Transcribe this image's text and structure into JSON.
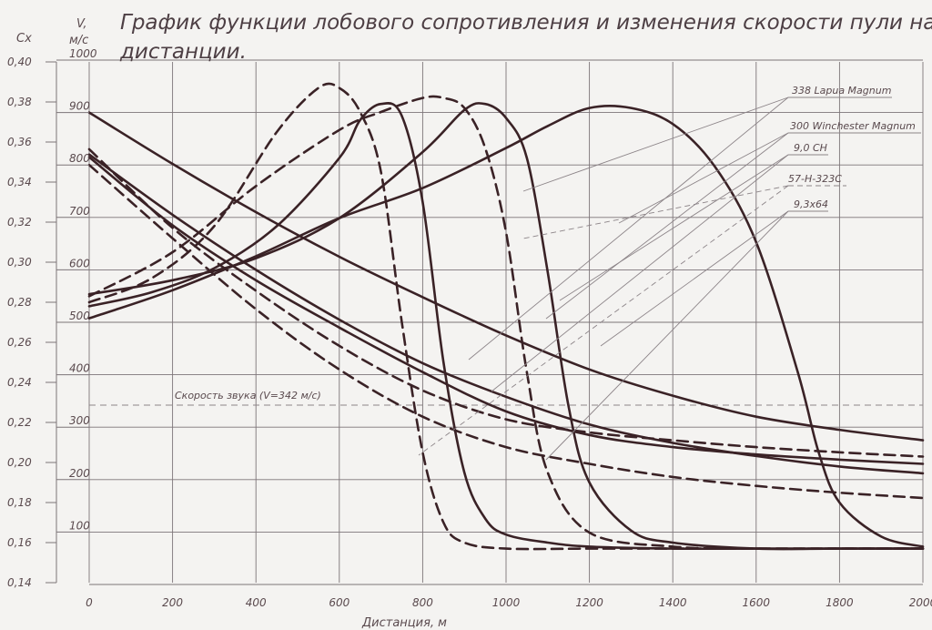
{
  "colors": {
    "paper": "#f4f3f1",
    "grid": "#7c7478",
    "curve": "#3a2226",
    "leader": "#8c8488",
    "text": "#5a4a4e"
  },
  "chart_data": {
    "type": "line",
    "title_line1": "График функции лобового сопротивления и изменения скорости пули на",
    "title_line2": "дистанции.",
    "xlabel": "Дистанция, м",
    "ylabel_cx": "Cx",
    "ylabel_v_top": "V,",
    "ylabel_v_unit": "м/с",
    "x_ticks": [
      "0",
      "200",
      "400",
      "600",
      "800",
      "1000",
      "1200",
      "1400",
      "1600",
      "1800",
      "2000"
    ],
    "cx_ticks": [
      "0,40",
      "0,38",
      "0,36",
      "0,34",
      "0,32",
      "0,30",
      "0,28",
      "0,26",
      "0,24",
      "0,22",
      "0,20",
      "0,18",
      "0,16",
      "0,14"
    ],
    "v_ticks": [
      "1000",
      "900",
      "800",
      "700",
      "600",
      "500",
      "400",
      "300",
      "200",
      "100"
    ],
    "xlim": [
      0,
      2000
    ],
    "vlim": [
      0,
      1000
    ],
    "cxlim": [
      0.14,
      0.4
    ],
    "grid": true,
    "sound_speed_label": "Скорость звука (V=342 м/с)",
    "sound_speed_value": 342,
    "legend": [
      {
        "name": "338 Lapua Magnum"
      },
      {
        "name": "300 Winchester Magnum"
      },
      {
        "name": "9,0 CH"
      },
      {
        "name": "57-H-323C"
      },
      {
        "name": "9,3x64"
      }
    ],
    "velocity_series": [
      {
        "style": "solid",
        "x": [
          0,
          200,
          400,
          600,
          800,
          1000,
          1200,
          1400,
          1600,
          1800,
          2000
        ],
        "values": [
          900,
          802,
          710,
          625,
          548,
          475,
          410,
          360,
          320,
          295,
          275
        ]
      },
      {
        "style": "solid",
        "x": [
          0,
          200,
          400,
          600,
          800,
          1000,
          1200,
          1400,
          1600,
          1800,
          2000
        ],
        "values": [
          820,
          705,
          600,
          505,
          422,
          358,
          305,
          270,
          245,
          225,
          212
        ]
      },
      {
        "style": "solid",
        "x": [
          0,
          200,
          400,
          600,
          800,
          1000,
          1200,
          1400,
          1600,
          1800,
          2000
        ],
        "values": [
          815,
          685,
          580,
          490,
          405,
          330,
          285,
          262,
          248,
          238,
          230
        ]
      },
      {
        "style": "dashed",
        "x": [
          0,
          200,
          400,
          600,
          800,
          1000,
          1200,
          1400,
          1600,
          1800,
          2000
        ],
        "values": [
          830,
          680,
          560,
          455,
          370,
          315,
          290,
          275,
          262,
          252,
          244
        ]
      },
      {
        "style": "dashed",
        "x": [
          0,
          200,
          400,
          600,
          800,
          1000,
          1200,
          1400,
          1600,
          1800,
          2000
        ],
        "values": [
          800,
          660,
          525,
          410,
          320,
          262,
          230,
          205,
          188,
          175,
          165
        ]
      }
    ],
    "cx_series": [
      {
        "style": "solid",
        "x": [
          0,
          150,
          300,
          450,
          600,
          650,
          700,
          750,
          800,
          850,
          900,
          950,
          1000,
          1100,
          1200,
          1400,
          1600,
          1800,
          2000
        ],
        "values": [
          0.278,
          0.285,
          0.297,
          0.318,
          0.352,
          0.371,
          0.379,
          0.373,
          0.33,
          0.25,
          0.195,
          0.172,
          0.164,
          0.16,
          0.158,
          0.157,
          0.157,
          0.157,
          0.157
        ]
      },
      {
        "style": "solid",
        "x": [
          0,
          200,
          400,
          600,
          800,
          900,
          950,
          1000,
          1050,
          1100,
          1150,
          1200,
          1300,
          1400,
          1600,
          1800,
          2000
        ],
        "values": [
          0.284,
          0.291,
          0.302,
          0.322,
          0.355,
          0.376,
          0.379,
          0.372,
          0.352,
          0.295,
          0.228,
          0.19,
          0.166,
          0.16,
          0.157,
          0.157,
          0.157
        ]
      },
      {
        "style": "solid",
        "x": [
          0,
          200,
          400,
          600,
          800,
          1000,
          1100,
          1200,
          1300,
          1400,
          1500,
          1600,
          1700,
          1750,
          1800,
          1900,
          2000
        ],
        "values": [
          0.272,
          0.286,
          0.303,
          0.322,
          0.337,
          0.357,
          0.368,
          0.377,
          0.377,
          0.369,
          0.348,
          0.31,
          0.245,
          0.205,
          0.18,
          0.163,
          0.158
        ]
      },
      {
        "style": "dashed",
        "x": [
          0,
          150,
          300,
          450,
          550,
          600,
          650,
          700,
          750,
          800,
          850,
          900,
          1000,
          1200,
          1400,
          1600,
          1800,
          2000
        ],
        "values": [
          0.28,
          0.292,
          0.318,
          0.365,
          0.387,
          0.387,
          0.375,
          0.345,
          0.27,
          0.205,
          0.17,
          0.16,
          0.157,
          0.157,
          0.157,
          0.157,
          0.157,
          0.157
        ]
      },
      {
        "style": "dashed",
        "x": [
          0,
          200,
          400,
          600,
          700,
          800,
          850,
          900,
          950,
          1000,
          1050,
          1100,
          1200,
          1400,
          1600,
          1800,
          2000
        ],
        "values": [
          0.283,
          0.305,
          0.338,
          0.366,
          0.375,
          0.382,
          0.382,
          0.377,
          0.357,
          0.315,
          0.245,
          0.195,
          0.165,
          0.158,
          0.157,
          0.157,
          0.157
        ]
      }
    ]
  }
}
